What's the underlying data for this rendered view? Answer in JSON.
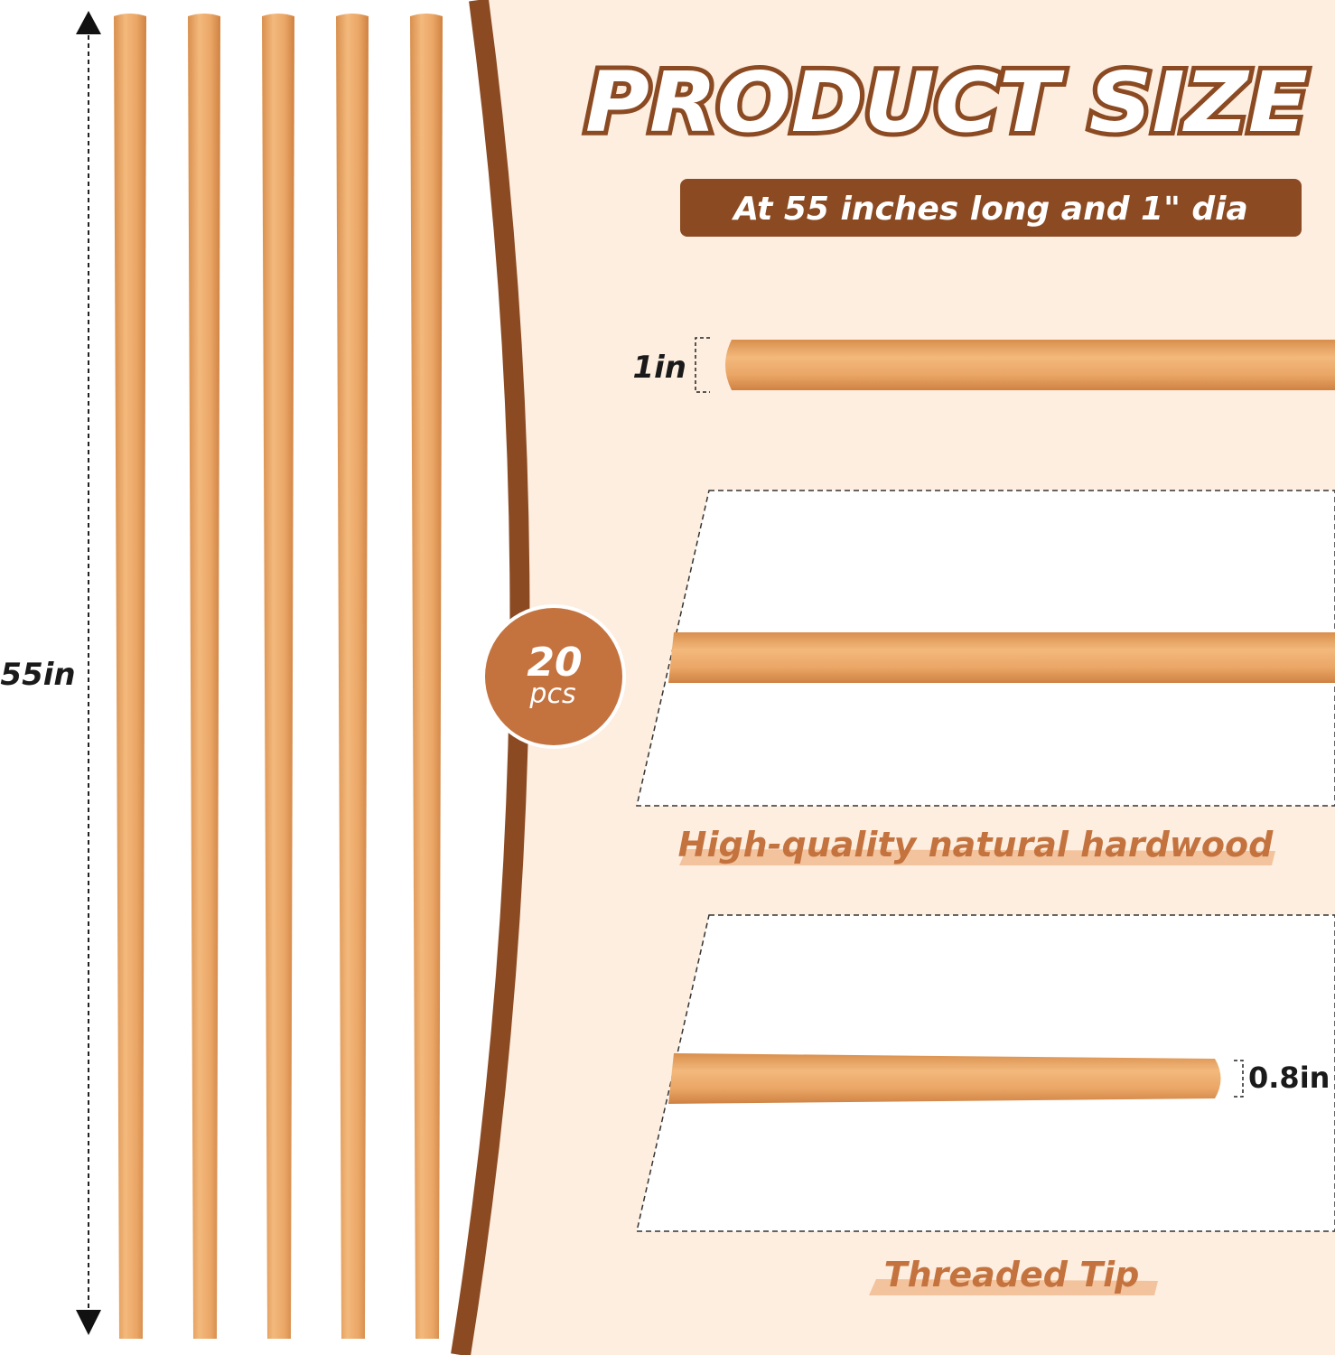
{
  "title": "PRODUCT SIZE",
  "subtitle": "At 55 inches long and 1\" dia",
  "length_label": "55in",
  "diameter_label": "1in",
  "tip_diameter_label": "0.8in",
  "count_badge": {
    "number": "20",
    "unit": "pcs"
  },
  "feature_1": "High-quality natural hardwood",
  "feature_2": "Threaded Tip",
  "colors": {
    "brown": "#8b4a22",
    "badge": "#c4733f",
    "peach": "#fdeee0",
    "wood": "#eaa666",
    "highlight": "#f2c39c"
  }
}
